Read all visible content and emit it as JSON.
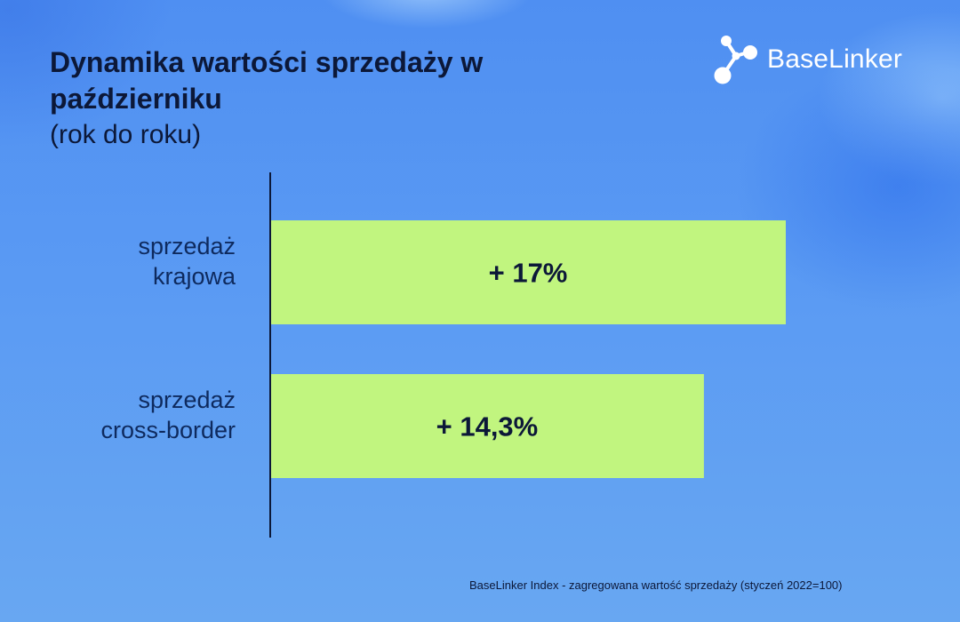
{
  "title": "Dynamika wartości sprzedaży w październiku",
  "subtitle": "(rok do roku)",
  "brand": {
    "name": "BaseLinker",
    "logo_icon": "molecule-nodes-icon"
  },
  "source_note": "BaseLinker Index - zagregowana wartość sprzedaży (styczeń 2022=100)",
  "colors": {
    "bar": "#c1f57f",
    "text_dark": "#0c1838",
    "axis": "#0c1838",
    "label": "#0e2a5e",
    "brand_white": "#ffffff"
  },
  "chart_data": {
    "type": "bar",
    "orientation": "horizontal",
    "categories": [
      [
        "sprzedaż",
        "krajowa"
      ],
      [
        "sprzedaż",
        "cross-border"
      ]
    ],
    "values": [
      17,
      14.3
    ],
    "value_labels": [
      "+ 17%",
      "+ 14,3%"
    ],
    "unit": "%",
    "xlim": [
      0,
      17
    ],
    "grid": false,
    "legend": "none"
  }
}
